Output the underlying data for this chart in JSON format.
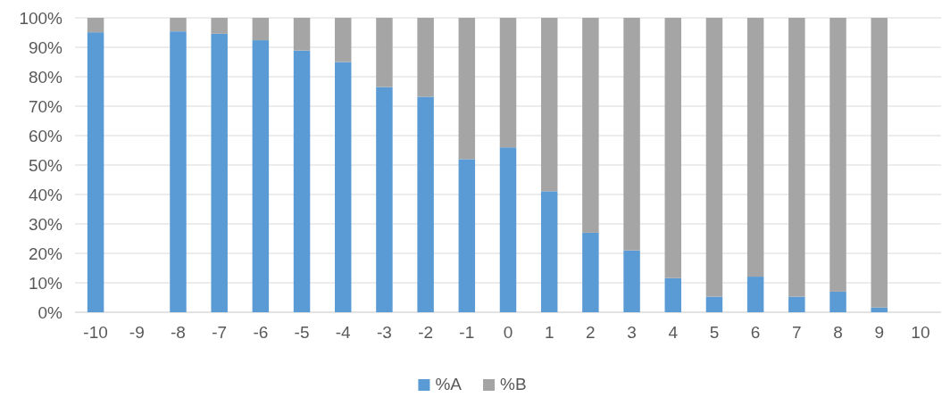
{
  "chart_data": {
    "type": "bar",
    "stacked": true,
    "categories": [
      "-10",
      "-9",
      "-8",
      "-7",
      "-6",
      "-5",
      "-4",
      "-3",
      "-2",
      "-1",
      "0",
      "1",
      "2",
      "3",
      "4",
      "5",
      "6",
      "7",
      "8",
      "9",
      "10"
    ],
    "series": [
      {
        "name": "%A",
        "color": "#5b9bd5",
        "values": [
          95.1,
          null,
          95.4,
          94.6,
          92.4,
          88.9,
          85.0,
          76.5,
          73.2,
          52.0,
          56.0,
          41.1,
          27.0,
          21.0,
          11.6,
          5.3,
          12.1,
          5.3,
          7.0,
          1.6,
          null
        ]
      },
      {
        "name": "%B",
        "color": "#a5a5a5",
        "values": [
          4.9,
          null,
          4.6,
          5.4,
          7.6,
          11.1,
          15.0,
          23.5,
          26.8,
          48.0,
          44.0,
          58.9,
          73.0,
          79.0,
          88.4,
          94.7,
          87.9,
          94.7,
          93.0,
          98.4,
          null
        ]
      }
    ],
    "ylim": [
      0,
      100
    ],
    "yticks": [
      {
        "value": 0,
        "label": "0%"
      },
      {
        "value": 10,
        "label": "10%"
      },
      {
        "value": 20,
        "label": "20%"
      },
      {
        "value": 30,
        "label": "30%"
      },
      {
        "value": 40,
        "label": "40%"
      },
      {
        "value": 50,
        "label": "50%"
      },
      {
        "value": 60,
        "label": "60%"
      },
      {
        "value": 70,
        "label": "70%"
      },
      {
        "value": 80,
        "label": "80%"
      },
      {
        "value": 90,
        "label": "90%"
      },
      {
        "value": 100,
        "label": "100%"
      }
    ],
    "grid": "y",
    "legend": "bottom"
  }
}
